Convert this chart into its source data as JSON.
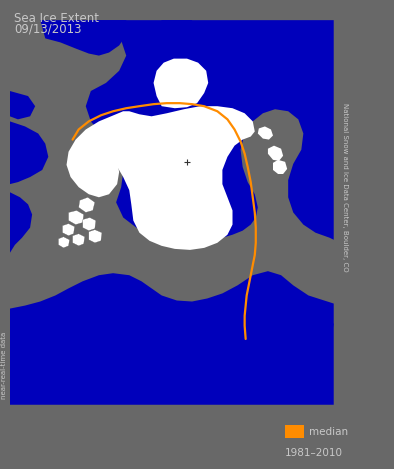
{
  "title_line1": "Sea Ice Extent",
  "title_line2": "09/13/2013",
  "legend_label": "median",
  "legend_sublabel": "1981–2010",
  "side_label": "National Snow and Ice Data Center, Boulder, CO",
  "bottom_label": "near-real-time data",
  "bg_color": "#686868",
  "land_color": "#757575",
  "ice_color": "#ffffff",
  "ocean_color": "#0000bb",
  "median_line_color": "#ff8c00",
  "legend_box_color": "#ff8c00",
  "title_color": "#c8c8c8",
  "text_color": "#c8c8c8",
  "fig_width": 3.94,
  "fig_height": 4.69,
  "dpi": 100
}
